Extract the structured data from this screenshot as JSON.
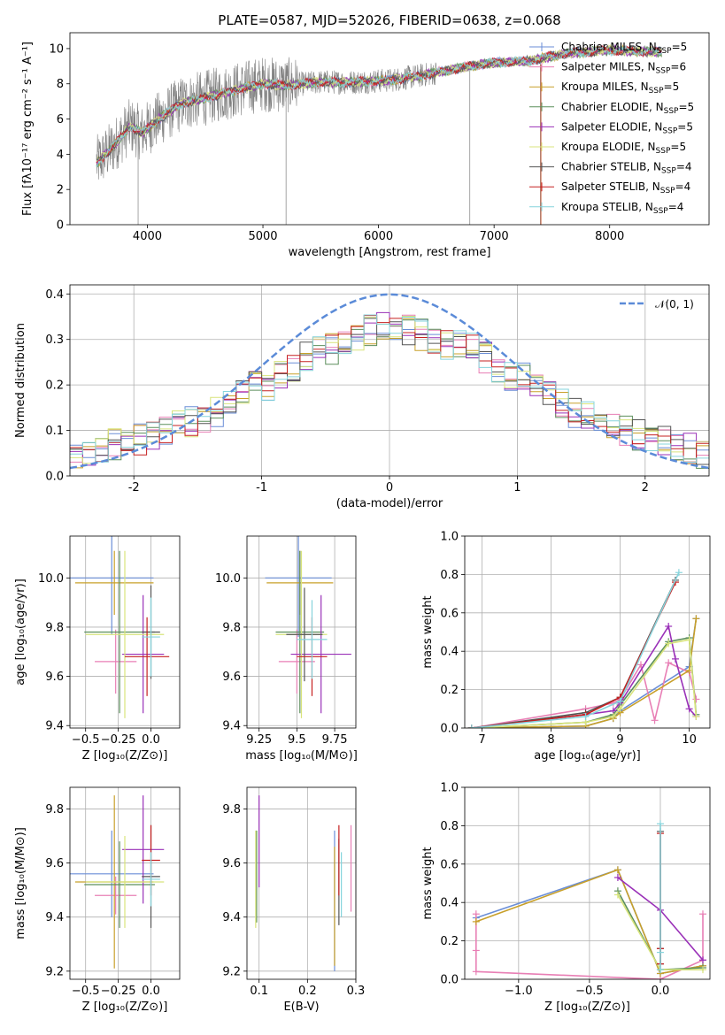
{
  "figure": {
    "title": "PLATE=0587, MJD=52026, FIBERID=0638, z=0.068"
  },
  "chart_data": [
    {
      "id": "spectrum",
      "type": "line",
      "xlabel": "wavelength [Angstrom, rest frame]",
      "ylabel": "Flux [fλ10⁻¹⁷ erg cm⁻² s⁻¹ A⁻¹]",
      "xlim": [
        3330,
        8860
      ],
      "ylim": [
        0,
        10.9
      ],
      "xticks": [
        4000,
        5000,
        6000,
        7000,
        8000
      ],
      "yticks": [
        0,
        2,
        4,
        6,
        8,
        10
      ],
      "grid": false,
      "legend_position": "right",
      "data_color": "#808080",
      "data_trend": [
        [
          3560,
          3.5
        ],
        [
          3700,
          4.4
        ],
        [
          3850,
          5.6
        ],
        [
          3950,
          5.2
        ],
        [
          4100,
          6.0
        ],
        [
          4300,
          6.9
        ],
        [
          4500,
          7.2
        ],
        [
          4800,
          7.7
        ],
        [
          5000,
          8.0
        ],
        [
          5200,
          7.9
        ],
        [
          5500,
          8.1
        ],
        [
          5800,
          8.1
        ],
        [
          6100,
          8.2
        ],
        [
          6400,
          8.5
        ],
        [
          6700,
          8.9
        ],
        [
          7000,
          9.2
        ],
        [
          7300,
          9.3
        ],
        [
          7600,
          9.7
        ],
        [
          8000,
          9.9
        ],
        [
          8450,
          9.8
        ]
      ],
      "series": [
        {
          "name": "Chabrier MILES, N",
          "sub": "SSP",
          "suffix": "=5",
          "color": "#6a8ed7"
        },
        {
          "name": "Salpeter MILES, N",
          "sub": "SSP",
          "suffix": "=6",
          "color": "#e87fb5"
        },
        {
          "name": "Kroupa MILES, N",
          "sub": "SSP",
          "suffix": "=5",
          "color": "#c8a02a"
        },
        {
          "name": "Chabrier ELODIE, N",
          "sub": "SSP",
          "suffix": "=5",
          "color": "#5c8f5c"
        },
        {
          "name": "Salpeter ELODIE, N",
          "sub": "SSP",
          "suffix": "=5",
          "color": "#9a31b8"
        },
        {
          "name": "Kroupa ELODIE, N",
          "sub": "SSP",
          "suffix": "=5",
          "color": "#d8e47c"
        },
        {
          "name": "Chabrier STELIB, N",
          "sub": "SSP",
          "suffix": "=4",
          "color": "#555555"
        },
        {
          "name": "Salpeter STELIB, N",
          "sub": "SSP",
          "suffix": "=4",
          "color": "#c62020"
        },
        {
          "name": "Kroupa STELIB, N",
          "sub": "SSP",
          "suffix": "=4",
          "color": "#86d4dc"
        }
      ]
    },
    {
      "id": "residuals",
      "type": "line",
      "xlabel": "(data-model)/error",
      "ylabel": "Normed distribution",
      "xlim": [
        -2.5,
        2.5
      ],
      "ylim": [
        0,
        0.42
      ],
      "xticks": [
        -2,
        -1,
        0,
        1,
        2
      ],
      "yticks": [
        0.0,
        0.1,
        0.2,
        0.3,
        0.4
      ],
      "grid": true,
      "legend_position": "top-right",
      "gaussian": {
        "label": "𝒩(0, 1)",
        "mu": 0,
        "sigma": 1,
        "color": "#5b8bd8"
      },
      "bin_width": 0.1,
      "hist_envelope": [
        0.04,
        0.05,
        0.06,
        0.07,
        0.08,
        0.09,
        0.1,
        0.11,
        0.12,
        0.14,
        0.16,
        0.18,
        0.2,
        0.22,
        0.24,
        0.26,
        0.28,
        0.3,
        0.31,
        0.32,
        0.33,
        0.32,
        0.31,
        0.3,
        0.29,
        0.28,
        0.26,
        0.24,
        0.22,
        0.2,
        0.18,
        0.16,
        0.14,
        0.12,
        0.11,
        0.1,
        0.09,
        0.08,
        0.07,
        0.06,
        0.05
      ],
      "series_colors": [
        "#6a8ed7",
        "#e87fb5",
        "#c8a02a",
        "#5c8f5c",
        "#9a31b8",
        "#d8e47c",
        "#555555",
        "#c62020",
        "#86d4dc"
      ]
    },
    {
      "id": "age-vs-Z",
      "type": "scatter",
      "xlabel": "Z [log₁₀(Z/Z⊙)]",
      "ylabel": "age  [log₁₀(age/yr)]",
      "xlim": [
        -0.62,
        0.22
      ],
      "ylim": [
        9.39,
        10.17
      ],
      "xticks": [
        -0.5,
        -0.25,
        0.0
      ],
      "xticklabels": [
        "−0.5",
        "−0.25",
        "0.0"
      ],
      "yticks": [
        9.4,
        9.6,
        9.8,
        10.0
      ],
      "grid": true,
      "points": [
        {
          "color": "#6a8ed7",
          "x": -0.3,
          "xerr": 0.32,
          "y": 10.0,
          "yerr": 0.23
        },
        {
          "color": "#e87fb5",
          "x": -0.27,
          "xerr": 0.16,
          "y": 9.66,
          "yerr": 0.13
        },
        {
          "color": "#c8a02a",
          "x": -0.28,
          "xerr": 0.3,
          "y": 9.98,
          "yerr": 0.13
        },
        {
          "color": "#5c8f5c",
          "x": -0.24,
          "xerr": 0.27,
          "y": 9.78,
          "yerr": 0.33
        },
        {
          "color": "#9a31b8",
          "x": -0.06,
          "xerr": 0.16,
          "y": 9.69,
          "yerr": 0.24
        },
        {
          "color": "#d8e47c",
          "x": -0.2,
          "xerr": 0.3,
          "y": 9.77,
          "yerr": 0.34
        },
        {
          "color": "#555555",
          "x": 0.0,
          "xerr": 0.07,
          "y": 9.78,
          "yerr": 0.19
        },
        {
          "color": "#c62020",
          "x": -0.03,
          "xerr": 0.17,
          "y": 9.68,
          "yerr": 0.16
        },
        {
          "color": "#86d4dc",
          "x": 0.0,
          "xerr": 0.07,
          "y": 9.76,
          "yerr": 0.16
        }
      ]
    },
    {
      "id": "age-vs-mass",
      "type": "scatter",
      "xlabel": "mass [log₁₀(M/M⊙)]",
      "ylabel": "",
      "xlim": [
        9.17,
        9.89
      ],
      "ylim": [
        9.39,
        10.17
      ],
      "xticks": [
        9.25,
        9.5,
        9.75
      ],
      "yticks": [
        9.4,
        9.6,
        9.8,
        10.0
      ],
      "grid": true,
      "points": [
        {
          "color": "#6a8ed7",
          "x": 9.51,
          "xerr": 0.22,
          "y": 10.0,
          "yerr": 0.24
        },
        {
          "color": "#e87fb5",
          "x": 9.5,
          "xerr": 0.12,
          "y": 9.66,
          "yerr": 0.13
        },
        {
          "color": "#c8a02a",
          "x": 9.52,
          "xerr": 0.22,
          "y": 9.98,
          "yerr": 0.13
        },
        {
          "color": "#5c8f5c",
          "x": 9.52,
          "xerr": 0.16,
          "y": 9.78,
          "yerr": 0.33
        },
        {
          "color": "#9a31b8",
          "x": 9.66,
          "xerr": 0.2,
          "y": 9.69,
          "yerr": 0.24
        },
        {
          "color": "#d8e47c",
          "x": 9.53,
          "xerr": 0.17,
          "y": 9.77,
          "yerr": 0.34
        },
        {
          "color": "#555555",
          "x": 9.55,
          "xerr": 0.12,
          "y": 9.77,
          "yerr": 0.19
        },
        {
          "color": "#c62020",
          "x": 9.6,
          "xerr": 0.1,
          "y": 9.68,
          "yerr": 0.16
        },
        {
          "color": "#86d4dc",
          "x": 9.6,
          "xerr": 0.1,
          "y": 9.75,
          "yerr": 0.16
        }
      ]
    },
    {
      "id": "weight-vs-age",
      "type": "line",
      "xlabel": "age  [log₁₀(age/yr)]",
      "ylabel": "mass weight",
      "xlim": [
        6.75,
        10.3
      ],
      "ylim": [
        0.0,
        1.0
      ],
      "xticks": [
        7,
        8,
        9,
        10
      ],
      "yticks": [
        0.0,
        0.2,
        0.4,
        0.6,
        0.8,
        1.0
      ],
      "grid": true,
      "series": [
        {
          "color": "#6a8ed7",
          "x": [
            6.85,
            8.5,
            8.9,
            9.0,
            10.0,
            10.1
          ],
          "y": [
            0.0,
            0.01,
            0.05,
            0.09,
            0.32,
            0.57
          ]
        },
        {
          "color": "#e87fb5",
          "x": [
            6.85,
            8.5,
            8.9,
            9.0,
            9.3,
            9.5,
            9.7,
            10.0,
            10.1
          ],
          "y": [
            0.0,
            0.1,
            0.13,
            0.15,
            0.33,
            0.04,
            0.34,
            0.29,
            0.15
          ]
        },
        {
          "color": "#c8a02a",
          "x": [
            6.85,
            8.5,
            8.9,
            9.0,
            10.0,
            10.1
          ],
          "y": [
            0.0,
            0.01,
            0.05,
            0.08,
            0.3,
            0.57
          ]
        },
        {
          "color": "#5c8f5c",
          "x": [
            6.85,
            8.5,
            8.9,
            9.0,
            9.7,
            10.0,
            10.1
          ],
          "y": [
            0.0,
            0.03,
            0.07,
            0.12,
            0.45,
            0.47,
            0.07
          ]
        },
        {
          "color": "#9a31b8",
          "x": [
            6.85,
            8.5,
            8.9,
            9.0,
            9.7,
            9.8,
            10.0,
            10.1
          ],
          "y": [
            0.0,
            0.07,
            0.09,
            0.13,
            0.53,
            0.36,
            0.1,
            0.06
          ]
        },
        {
          "color": "#d8e47c",
          "x": [
            6.85,
            8.5,
            8.9,
            9.0,
            9.7,
            10.0,
            10.1
          ],
          "y": [
            0.0,
            0.03,
            0.06,
            0.1,
            0.44,
            0.46,
            0.06
          ]
        },
        {
          "color": "#555555",
          "x": [
            6.85,
            8.5,
            9.0,
            9.8
          ],
          "y": [
            0.0,
            0.08,
            0.16,
            0.77
          ]
        },
        {
          "color": "#c62020",
          "x": [
            6.85,
            8.5,
            9.0,
            9.8
          ],
          "y": [
            0.0,
            0.07,
            0.16,
            0.76
          ]
        },
        {
          "color": "#86d4dc",
          "x": [
            6.85,
            8.5,
            9.0,
            9.85
          ],
          "y": [
            0.0,
            0.06,
            0.14,
            0.81
          ]
        }
      ]
    },
    {
      "id": "mass-vs-Z",
      "type": "scatter",
      "xlabel": "Z [log₁₀(Z/Z⊙)]",
      "ylabel": "mass [log₁₀(M/M⊙)]",
      "xlim": [
        -0.62,
        0.22
      ],
      "ylim": [
        9.17,
        9.88
      ],
      "xticks": [
        -0.5,
        -0.25,
        0.0
      ],
      "xticklabels": [
        "−0.5",
        "−0.25",
        "0.0"
      ],
      "yticks": [
        9.2,
        9.4,
        9.6,
        9.8
      ],
      "grid": true,
      "points": [
        {
          "color": "#6a8ed7",
          "x": -0.3,
          "xerr": 0.32,
          "y": 9.56,
          "yerr": 0.16
        },
        {
          "color": "#e87fb5",
          "x": -0.27,
          "xerr": 0.16,
          "y": 9.48,
          "yerr": 0.07
        },
        {
          "color": "#c8a02a",
          "x": -0.28,
          "xerr": 0.3,
          "y": 9.53,
          "yerr": 0.32
        },
        {
          "color": "#5c8f5c",
          "x": -0.24,
          "xerr": 0.27,
          "y": 9.52,
          "yerr": 0.16
        },
        {
          "color": "#9a31b8",
          "x": -0.06,
          "xerr": 0.16,
          "y": 9.65,
          "yerr": 0.2
        },
        {
          "color": "#d8e47c",
          "x": -0.2,
          "xerr": 0.3,
          "y": 9.53,
          "yerr": 0.17
        },
        {
          "color": "#555555",
          "x": 0.0,
          "xerr": 0.07,
          "y": 9.55,
          "yerr": 0.19
        },
        {
          "color": "#c62020",
          "x": 0.0,
          "xerr": 0.07,
          "y": 9.61,
          "yerr": 0.13
        },
        {
          "color": "#86d4dc",
          "x": 0.0,
          "xerr": 0.07,
          "y": 9.54,
          "yerr": 0.1
        }
      ]
    },
    {
      "id": "mass-vs-EBV",
      "type": "scatter",
      "xlabel": "E(B-V)",
      "ylabel": "",
      "xlim": [
        0.075,
        0.3
      ],
      "ylim": [
        9.17,
        9.88
      ],
      "xticks": [
        0.1,
        0.2,
        0.3
      ],
      "yticks": [
        9.2,
        9.4,
        9.6,
        9.8
      ],
      "grid": true,
      "points": [
        {
          "color": "#6a8ed7",
          "x": 0.256,
          "xerr": 0,
          "y": 9.46,
          "yerr": 0.26
        },
        {
          "color": "#e87fb5",
          "x": 0.29,
          "xerr": 0,
          "y": 9.58,
          "yerr": 0.16
        },
        {
          "color": "#c8a02a",
          "x": 0.256,
          "xerr": 0,
          "y": 9.44,
          "yerr": 0.22
        },
        {
          "color": "#5c8f5c",
          "x": 0.095,
          "xerr": 0,
          "y": 9.55,
          "yerr": 0.17
        },
        {
          "color": "#9a31b8",
          "x": 0.1,
          "xerr": 0,
          "y": 9.68,
          "yerr": 0.17
        },
        {
          "color": "#d8e47c",
          "x": 0.093,
          "xerr": 0,
          "y": 9.54,
          "yerr": 0.18
        },
        {
          "color": "#555555",
          "x": 0.265,
          "xerr": 0,
          "y": 9.53,
          "yerr": 0.16
        },
        {
          "color": "#c62020",
          "x": 0.265,
          "xerr": 0,
          "y": 9.61,
          "yerr": 0.13
        },
        {
          "color": "#86d4dc",
          "x": 0.27,
          "xerr": 0,
          "y": 9.52,
          "yerr": 0.12
        }
      ]
    },
    {
      "id": "weight-vs-Z",
      "type": "line",
      "xlabel": "Z [log₁₀(Z/Z⊙)]",
      "ylabel": "mass weight",
      "xlim": [
        -1.38,
        0.35
      ],
      "ylim": [
        0.0,
        1.0
      ],
      "xticks": [
        -1.0,
        -0.5,
        0.0
      ],
      "xticklabels": [
        "−1.0",
        "−0.5",
        "0.0"
      ],
      "yticks": [
        0.0,
        0.2,
        0.4,
        0.6,
        0.8,
        1.0
      ],
      "grid": true,
      "series": [
        {
          "color": "#6a8ed7",
          "x": [
            -1.3,
            -0.3,
            0.0,
            0.3
          ],
          "y": [
            0.32,
            0.57,
            0.03,
            0.07
          ]
        },
        {
          "color": "#e87fb5",
          "x": [
            -1.3,
            -1.3,
            -1.3,
            0.0,
            0.3,
            0.3
          ],
          "y": [
            0.34,
            0.15,
            0.04,
            0.0,
            0.1,
            0.34
          ]
        },
        {
          "color": "#c8a02a",
          "x": [
            -1.3,
            -0.3,
            0.0,
            0.3
          ],
          "y": [
            0.3,
            0.57,
            0.03,
            0.07
          ]
        },
        {
          "color": "#5c8f5c",
          "x": [
            -0.3,
            0.0,
            0.3
          ],
          "y": [
            0.46,
            0.05,
            0.06
          ]
        },
        {
          "color": "#9a31b8",
          "x": [
            -0.3,
            0.0,
            0.3
          ],
          "y": [
            0.53,
            0.36,
            0.1
          ]
        },
        {
          "color": "#d8e47c",
          "x": [
            -0.3,
            0.0,
            0.3
          ],
          "y": [
            0.44,
            0.05,
            0.05
          ]
        },
        {
          "color": "#555555",
          "x": [
            0.0,
            0.0,
            0.0
          ],
          "y": [
            0.77,
            0.16,
            0.08
          ]
        },
        {
          "color": "#c62020",
          "x": [
            0.0,
            0.0,
            0.0
          ],
          "y": [
            0.76,
            0.16,
            0.08
          ]
        },
        {
          "color": "#86d4dc",
          "x": [
            0.0,
            0.0,
            0.0
          ],
          "y": [
            0.81,
            0.14,
            0.05
          ]
        }
      ]
    }
  ]
}
